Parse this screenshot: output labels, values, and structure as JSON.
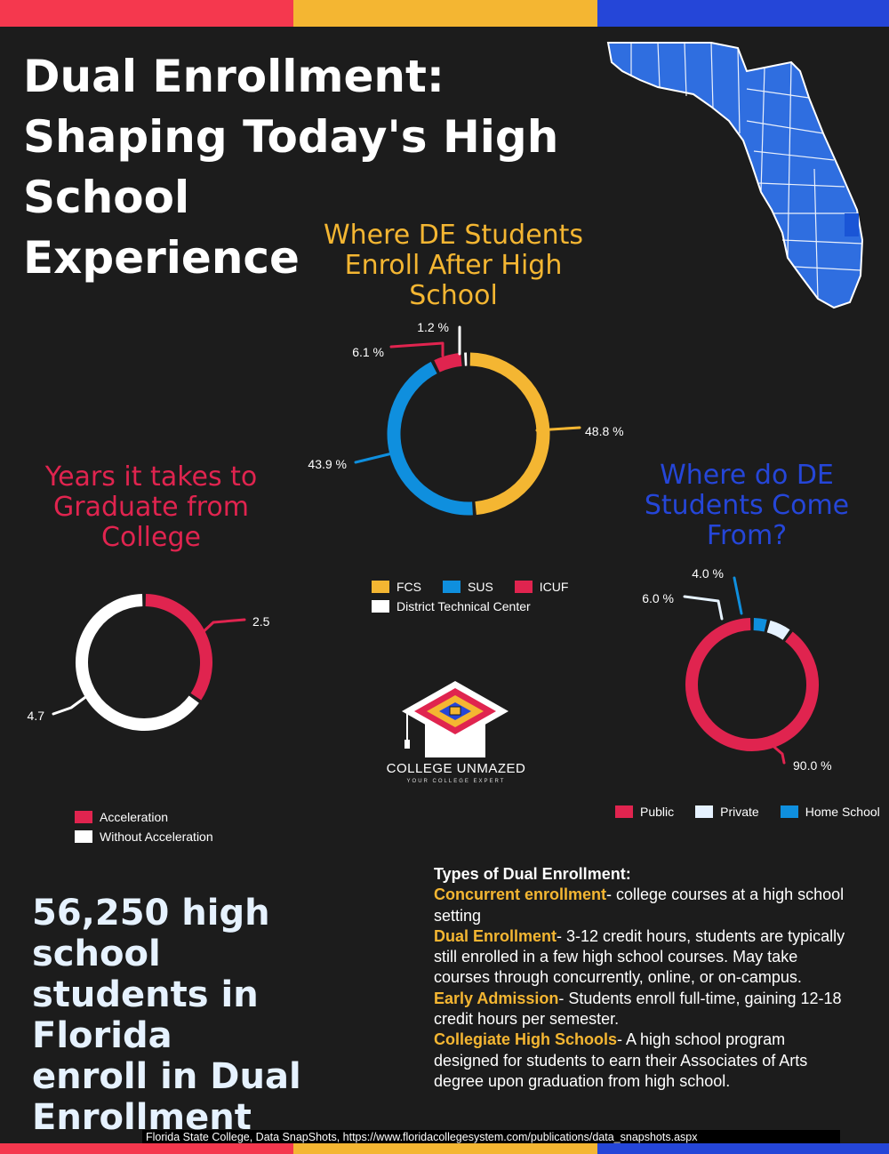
{
  "colors": {
    "red": "#e0244f",
    "gold": "#f4b632",
    "blue": "#2546d8",
    "sky": "#0f8fde",
    "white": "#ffffff",
    "pale": "#e6f2ff",
    "background": "#1c1c1c"
  },
  "title_lines": [
    "Dual Enrollment:",
    "Shaping Today's High School",
    "Experience"
  ],
  "map": {
    "icon": "florida-map-icon",
    "color": "#2f6ee0"
  },
  "chart_data": [
    {
      "type": "pie",
      "title_lines": [
        "Where DE Students",
        "Enroll After High",
        "School"
      ],
      "title_color": "#f4b632",
      "labels": [
        "FCS",
        "SUS",
        "ICUF",
        "District Technical Center"
      ],
      "values": [
        48.8,
        43.9,
        6.1,
        1.2
      ],
      "value_labels": [
        "48.8 %",
        "43.9 %",
        "6.1 %",
        "1.2 %"
      ],
      "colors": [
        "#f4b632",
        "#0f8fde",
        "#e0244f",
        "#ffffff"
      ],
      "legend_placement": "bottom",
      "donut": true
    },
    {
      "type": "pie",
      "title_lines": [
        "Years it takes to",
        "Graduate from",
        "College"
      ],
      "title_color": "#e0244f",
      "labels": [
        "Acceleration",
        "Without Acceleration"
      ],
      "values": [
        2.5,
        4.7
      ],
      "value_labels": [
        "2.5",
        "4.7"
      ],
      "colors": [
        "#e0244f",
        "#ffffff"
      ],
      "legend_placement": "bottom",
      "donut": true
    },
    {
      "type": "pie",
      "title_lines": [
        "Where do DE",
        "Students Come",
        "From?"
      ],
      "title_color": "#2546d8",
      "labels": [
        "Public",
        "Private",
        "Home School"
      ],
      "values": [
        90.0,
        6.0,
        4.0
      ],
      "value_labels": [
        "90.0 %",
        "6.0 %",
        "4.0 %"
      ],
      "colors": [
        "#e0244f",
        "#e6f2ff",
        "#0f8fde"
      ],
      "legend_placement": "bottom",
      "donut": true
    }
  ],
  "logo": {
    "icon": "graduation-cap-logo-icon",
    "name": "COLLEGE UNMAZED",
    "tagline": "YOUR COLLEGE EXPERT"
  },
  "stat_lines": [
    "56,250 high school",
    "students in Florida",
    "enroll in Dual",
    "Enrollment"
  ],
  "types": {
    "heading": "Types of Dual Enrollment:",
    "items": [
      {
        "term": "Concurrent enrollment",
        "desc": "- college courses at a high school setting"
      },
      {
        "term": "Dual Enrollment",
        "desc": "- 3-12 credit hours, students are typically still enrolled in a few high school courses. May take courses through concurrently, online, or on-campus."
      },
      {
        "term": "Early Admission",
        "desc": "- Students enroll full-time, gaining 12-18 credit hours per semester."
      },
      {
        "term": "Collegiate High Schools",
        "desc": "- A high school program designed for students to earn their Associates of Arts degree upon graduation from high school."
      }
    ]
  },
  "source": "Florida State College, Data SnapShots, https://www.floridacollegesystem.com/publications/data_snapshots.aspx"
}
